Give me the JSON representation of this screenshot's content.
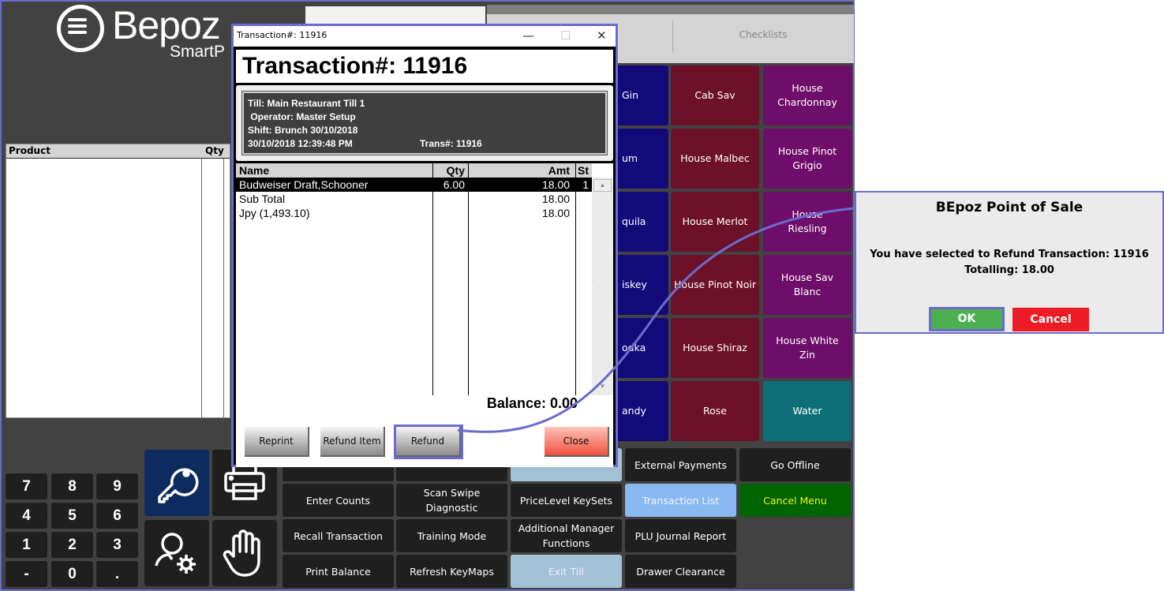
{
  "app": {
    "logo_text": "Bepoz",
    "logo_sub": "SmartP"
  },
  "top_tabs": {
    "checklists": "Checklists"
  },
  "product_list": {
    "col_product": "Product",
    "col_qty": "Qty"
  },
  "product_grid": {
    "partial_column": [
      "Gin",
      "um",
      "quila",
      "iskey",
      "odka",
      "andy"
    ],
    "rows": [
      [
        "Cab Sav",
        "House Chardonnay"
      ],
      [
        "House Malbec",
        "House Pinot Grigio"
      ],
      [
        "House Merlot",
        "House Riesling"
      ],
      [
        "House Pinot Noir",
        "House Sav Blanc"
      ],
      [
        "House Shiraz",
        "House White Zin"
      ],
      [
        "Rose",
        "Water"
      ]
    ]
  },
  "function_buttons": {
    "row1": [
      "",
      "",
      "",
      "External Payments",
      "Go Offline"
    ],
    "row2": [
      "Enter Counts",
      "Scan Swipe Diagnostic",
      "PriceLevel KeySets",
      "Transaction List",
      "Cancel Menu"
    ],
    "row3": [
      "Recall Transaction",
      "Training Mode",
      "Additional Manager Functions",
      "PLU Journal Report"
    ],
    "row4": [
      "Print Balance",
      "Refresh KeyMaps",
      "Exit Till",
      "Drawer Clearance"
    ]
  },
  "numpad": [
    "7",
    "8",
    "9",
    "4",
    "5",
    "6",
    "1",
    "2",
    "3",
    "-",
    "0",
    "."
  ],
  "icons": [
    "key-icon",
    "printer-icon",
    "user-settings-icon",
    "hand-icon"
  ],
  "transaction_dialog": {
    "window_title": "Transaction#: 11916",
    "heading": "Transaction#: 11916",
    "info": {
      "till": "Till: Main Restaurant Till 1",
      "operator": " Operator: Master Setup",
      "shift": "Shift: Brunch 30/10/2018",
      "datetime": "30/10/2018 12:39:48 PM",
      "trans": "Trans#: 11916"
    },
    "columns": {
      "name": "Name",
      "qty": "Qty",
      "amt": "Amt",
      "st": "St"
    },
    "rows": [
      {
        "name": "Budweiser Draft,Schooner",
        "qty": "6.00",
        "amt": "18.00",
        "st": "1"
      },
      {
        "name": "Sub Total",
        "qty": "",
        "amt": "18.00",
        "st": ""
      },
      {
        "name": "Jpy (1,493.10)",
        "qty": "",
        "amt": "18.00",
        "st": ""
      }
    ],
    "balance": "Balance: 0.00",
    "buttons": {
      "reprint": "Reprint",
      "refund_item": "Refund Item",
      "refund": "Refund",
      "close": "Close"
    }
  },
  "confirm_dialog": {
    "title": "BEpoz Point of Sale",
    "message_line1": "You have selected to Refund Transaction: 11916",
    "message_line2": "Totalling: 18.00",
    "ok": "OK",
    "cancel": "Cancel"
  },
  "colors": {
    "highlight": "#6b6bcc",
    "ok": "#4caf50",
    "cancel": "#ed1c24",
    "wine_red": "#6d1128",
    "wine_purple": "#6e0e6a",
    "spirits_blue": "#130a7a",
    "water": "#0e6e78",
    "cancel_menu": "#006400",
    "transaction_list": "#8ab8f0",
    "exit_till": "#a3c1d4"
  }
}
